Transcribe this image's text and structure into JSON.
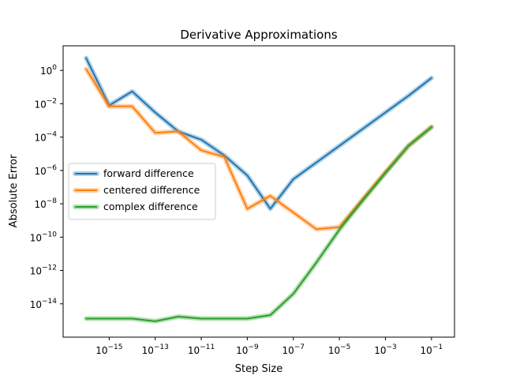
{
  "chart_data": {
    "type": "line",
    "title": "Derivative Approximations",
    "xlabel": "Step Size",
    "ylabel": "Absolute Error",
    "xscale": "log",
    "yscale": "log",
    "xlim": [
      1e-17,
      1
    ],
    "ylim": [
      1e-16,
      30
    ],
    "x_ticks": [
      {
        "base": "10",
        "exp": "−15",
        "value": 1e-15
      },
      {
        "base": "10",
        "exp": "−13",
        "value": 1e-13
      },
      {
        "base": "10",
        "exp": "−11",
        "value": 1e-11
      },
      {
        "base": "10",
        "exp": "−9",
        "value": 1e-09
      },
      {
        "base": "10",
        "exp": "−7",
        "value": 1e-07
      },
      {
        "base": "10",
        "exp": "−5",
        "value": 1e-05
      },
      {
        "base": "10",
        "exp": "−3",
        "value": 0.001
      },
      {
        "base": "10",
        "exp": "−1",
        "value": 0.1
      }
    ],
    "y_ticks": [
      {
        "base": "10",
        "exp": "0",
        "value": 1
      },
      {
        "base": "10",
        "exp": "−2",
        "value": 0.01
      },
      {
        "base": "10",
        "exp": "−4",
        "value": 0.0001
      },
      {
        "base": "10",
        "exp": "−6",
        "value": 1e-06
      },
      {
        "base": "10",
        "exp": "−8",
        "value": 1e-08
      },
      {
        "base": "10",
        "exp": "−10",
        "value": 1e-10
      },
      {
        "base": "10",
        "exp": "−12",
        "value": 1e-12
      },
      {
        "base": "10",
        "exp": "−14",
        "value": 1e-14
      }
    ],
    "legend_position": "center-left",
    "grid": false,
    "x": [
      1e-16,
      1e-15,
      1e-14,
      1e-13,
      1e-12,
      1e-11,
      1e-10,
      1e-09,
      1e-08,
      1e-07,
      1e-06,
      1e-05,
      0.0001,
      0.001,
      0.01,
      0.1
    ],
    "series": [
      {
        "name": "forward difference",
        "color": "#1f77b4",
        "values": [
          5.5,
          0.008,
          0.055,
          0.003,
          0.00022,
          7e-05,
          8e-06,
          5e-07,
          5e-09,
          3e-07,
          3e-06,
          3e-05,
          0.0003,
          0.003,
          0.03,
          0.35
        ]
      },
      {
        "name": "centered difference",
        "color": "#ff7f0e",
        "values": [
          1.2,
          0.007,
          0.007,
          0.00018,
          0.00022,
          1.6e-05,
          6.5e-06,
          5e-09,
          3e-08,
          3e-09,
          3e-10,
          4e-10,
          1.8e-08,
          8e-07,
          3e-05,
          0.0004
        ]
      },
      {
        "name": "complex difference",
        "color": "#2ca02c",
        "values": [
          1.3e-15,
          1.3e-15,
          1.3e-15,
          9e-16,
          1.7e-15,
          1.3e-15,
          1.3e-15,
          1.3e-15,
          2.1e-15,
          4e-14,
          3e-12,
          2.8e-10,
          1.5e-08,
          7e-07,
          3e-05,
          0.0004
        ]
      }
    ]
  }
}
